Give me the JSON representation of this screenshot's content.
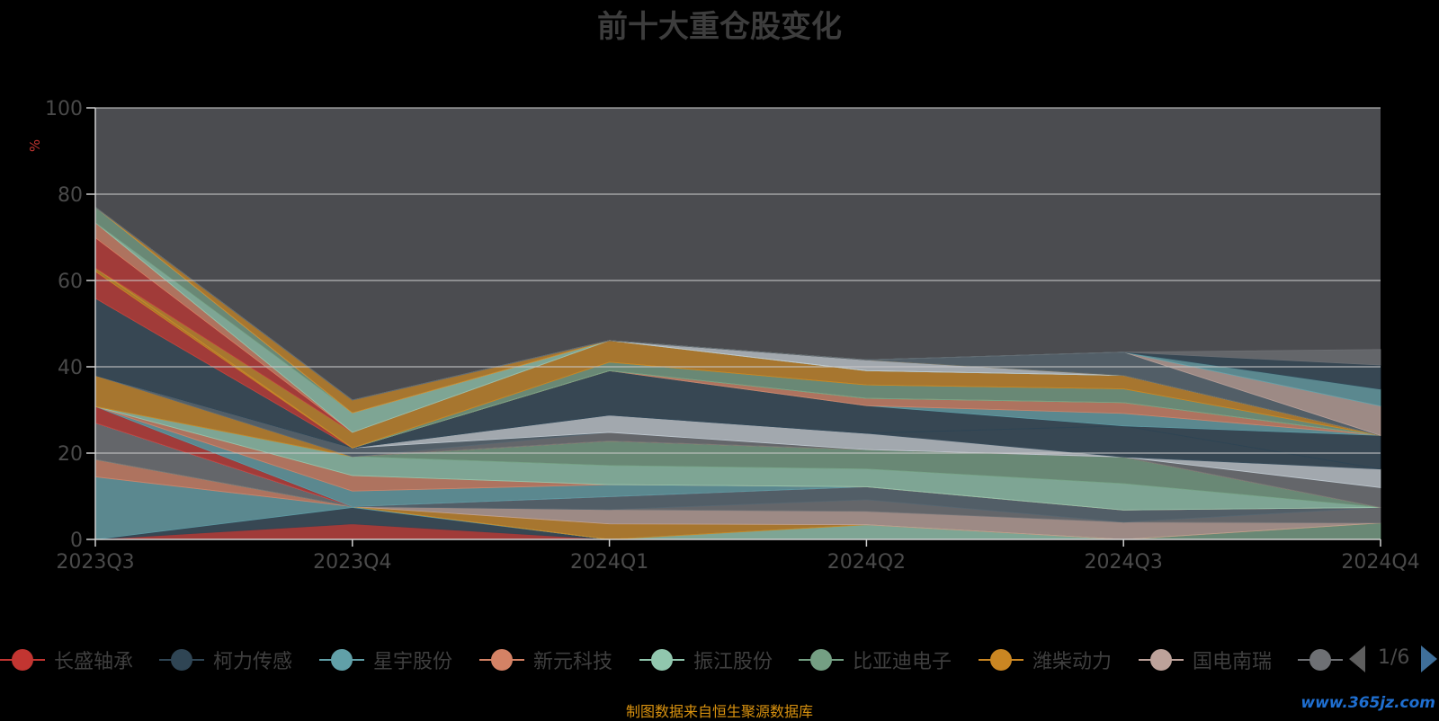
{
  "chart_data": {
    "type": "area",
    "title": "前十大重仓股变化",
    "ylabel": "%",
    "ylim": [
      0,
      100
    ],
    "yticks": [
      0,
      20,
      40,
      60,
      80,
      100
    ],
    "grid": true,
    "categories": [
      "2023Q3",
      "2023Q4",
      "2024Q1",
      "2024Q2",
      "2024Q3",
      "2024Q4"
    ],
    "series": [
      {
        "name": "长盛轴承",
        "color": "#c23531",
        "values": [
          0,
          3.6,
          0,
          0,
          0,
          0
        ]
      },
      {
        "name": "柯力传感",
        "color": "#2f4554",
        "values": [
          0,
          3.8,
          0,
          0,
          0,
          0
        ]
      },
      {
        "name": "星宇股份",
        "color": "#61a0a8",
        "values": [
          14.5,
          0.2,
          0,
          0,
          0,
          0
        ]
      },
      {
        "name": "新元科技",
        "color": "#d48265",
        "values": [
          4.0,
          0,
          0,
          0,
          0,
          0
        ]
      },
      {
        "name": "振江股份",
        "color": "#91c7ae",
        "values": [
          0,
          0,
          0,
          3.4,
          0,
          0
        ]
      },
      {
        "name": "比亚迪电子",
        "color": "#749f83",
        "values": [
          0,
          0,
          0,
          0,
          0,
          3.8
        ]
      },
      {
        "name": "潍柴动力",
        "color": "#ca8622",
        "values": [
          0,
          0,
          3.6,
          0,
          0,
          0
        ]
      },
      {
        "name": "国电南瑞",
        "color": "#bda29a",
        "values": [
          0,
          0,
          3.3,
          3.1,
          4.0,
          0
        ]
      },
      {
        "name": "",
        "color": "#6e7074",
        "values": [
          8.5,
          0,
          0,
          2.7,
          0,
          3.6
        ]
      },
      {
        "name": "",
        "color": "#546570",
        "values": [
          0,
          0,
          3.0,
          3.0,
          2.8,
          0
        ]
      },
      {
        "name": "",
        "color": "#c4ccd3",
        "values": [
          0,
          0,
          0,
          0,
          0,
          0
        ]
      },
      {
        "name": "",
        "color": "#c23531",
        "values": [
          3.8,
          0,
          0,
          0,
          0,
          0
        ]
      },
      {
        "name": "",
        "color": "#2f4554",
        "values": [
          0,
          0,
          0,
          0,
          0,
          0
        ]
      },
      {
        "name": "",
        "color": "#61a0a8",
        "values": [
          0,
          3.6,
          2.8,
          0,
          0,
          0
        ]
      },
      {
        "name": "",
        "color": "#d48265",
        "values": [
          0,
          3.6,
          0,
          0,
          0,
          0
        ]
      },
      {
        "name": "",
        "color": "#91c7ae",
        "values": [
          0,
          4.4,
          4.4,
          4.1,
          6.1,
          0
        ]
      },
      {
        "name": "",
        "color": "#749f83",
        "values": [
          0,
          0,
          5.7,
          4.5,
          6.2,
          0
        ]
      },
      {
        "name": "",
        "color": "#ca8622",
        "values": [
          7.2,
          0,
          0,
          0,
          0,
          0
        ]
      },
      {
        "name": "",
        "color": "#bda29a",
        "values": [
          0,
          0,
          0,
          0,
          0,
          0
        ]
      },
      {
        "name": "",
        "color": "#6e7074",
        "values": [
          0,
          0,
          2.0,
          0,
          0,
          4.6
        ]
      },
      {
        "name": "",
        "color": "#546570",
        "values": [
          0,
          2.0,
          0,
          0,
          0,
          0
        ]
      },
      {
        "name": "",
        "color": "#c4ccd3",
        "values": [
          0,
          0,
          4.0,
          3.8,
          0,
          4.3
        ]
      },
      {
        "name": "",
        "color": "#2f4554",
        "values": [
          0,
          0,
          0,
          0,
          7.2,
          0
        ]
      },
      {
        "name": "",
        "color": "#2f4554",
        "values": [
          17.9,
          0,
          10.3,
          6.4,
          0,
          7.8
        ]
      },
      {
        "name": "",
        "color": "#61a0a8",
        "values": [
          0,
          0,
          0,
          0,
          2.9,
          0
        ]
      },
      {
        "name": "",
        "color": "#d48265",
        "values": [
          0,
          0,
          0,
          1.7,
          2.5,
          0
        ]
      },
      {
        "name": "",
        "color": "#c23531",
        "values": [
          6.2,
          0,
          0,
          0,
          0,
          0
        ]
      },
      {
        "name": "",
        "color": "#ca8622",
        "values": [
          0.8,
          0,
          0,
          0,
          0,
          0
        ]
      },
      {
        "name": "",
        "color": "#91c7ae",
        "values": [
          0,
          0,
          0,
          0,
          0,
          0
        ]
      },
      {
        "name": "",
        "color": "#749f83",
        "values": [
          0,
          0,
          2.0,
          3.1,
          3.2,
          0
        ]
      },
      {
        "name": "",
        "color": "#ca8622",
        "values": [
          0,
          0,
          0,
          0,
          0,
          0
        ]
      },
      {
        "name": "",
        "color": "#ca8622",
        "values": [
          0,
          3.6,
          5.0,
          3.3,
          3.1,
          0
        ]
      },
      {
        "name": "",
        "color": "#91c7ae",
        "values": [
          0,
          0,
          0,
          0,
          0,
          0
        ]
      },
      {
        "name": "",
        "color": "#c23531",
        "values": [
          7.0,
          0,
          0,
          0,
          0,
          0
        ]
      },
      {
        "name": "",
        "color": "#d48265",
        "values": [
          3.5,
          0,
          0,
          0,
          0,
          0
        ]
      },
      {
        "name": "",
        "color": "#91c7ae",
        "values": [
          0,
          4.5,
          0,
          0,
          0,
          0
        ]
      },
      {
        "name": "",
        "color": "#749f83",
        "values": [
          3.6,
          0,
          0,
          0,
          0,
          0
        ]
      },
      {
        "name": "",
        "color": "#c4ccd3",
        "values": [
          0,
          0,
          0,
          2.5,
          0,
          0
        ]
      },
      {
        "name": "",
        "color": "#ca8622",
        "values": [
          0,
          3.0,
          0,
          0,
          0,
          0
        ]
      },
      {
        "name": "",
        "color": "#546570",
        "values": [
          0,
          0,
          0,
          0,
          5.4,
          0
        ]
      },
      {
        "name": "",
        "color": "#bda29a",
        "values": [
          0,
          0,
          0,
          0,
          0,
          6.8
        ]
      },
      {
        "name": "",
        "color": "#61a0a8",
        "values": [
          0,
          0,
          0,
          0,
          0,
          3.9
        ]
      },
      {
        "name": "",
        "color": "#2f4554",
        "values": [
          0,
          0,
          0,
          0,
          0,
          5.6
        ]
      },
      {
        "name": "",
        "color": "#6e7074",
        "values": [
          0,
          0,
          0,
          0,
          0,
          3.6
        ]
      }
    ]
  },
  "legend": {
    "items": [
      {
        "label": "长盛轴承",
        "color": "#c23531"
      },
      {
        "label": "柯力传感",
        "color": "#2f4554"
      },
      {
        "label": "星宇股份",
        "color": "#61a0a8"
      },
      {
        "label": "新元科技",
        "color": "#d48265"
      },
      {
        "label": "振江股份",
        "color": "#91c7ae"
      },
      {
        "label": "比亚迪电子",
        "color": "#749f83"
      },
      {
        "label": "潍柴动力",
        "color": "#ca8622"
      },
      {
        "label": "国电南瑞",
        "color": "#bda29a"
      },
      {
        "label": "",
        "color": "#6e7074"
      }
    ],
    "page_indicator": "1/6"
  },
  "source_note": "制图数据来自恒生聚源数据库",
  "watermark": "www.365jz.com"
}
